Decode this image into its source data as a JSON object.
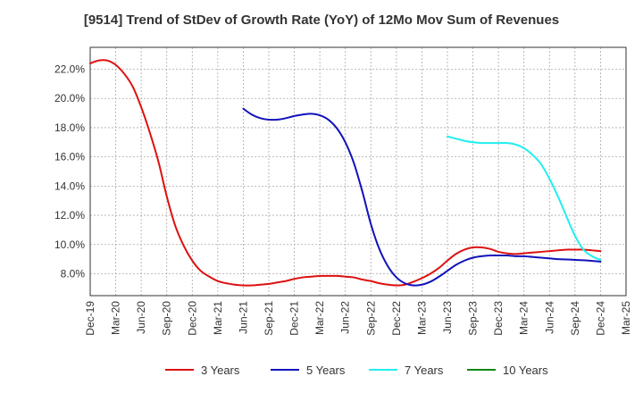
{
  "chart_data": {
    "type": "line",
    "title": "[9514]  Trend of StDev of Growth Rate (YoY) of 12Mo Mov Sum of Revenues",
    "xlabel": "",
    "ylabel": "",
    "ylim": [
      6.5,
      23.5
    ],
    "yticks": [
      8.0,
      10.0,
      12.0,
      14.0,
      16.0,
      18.0,
      20.0,
      22.0
    ],
    "ytick_labels": [
      "8.0%",
      "10.0%",
      "12.0%",
      "14.0%",
      "16.0%",
      "18.0%",
      "20.0%",
      "22.0%"
    ],
    "x_categories": [
      "Dec-19",
      "Mar-20",
      "Jun-20",
      "Sep-20",
      "Dec-20",
      "Mar-21",
      "Jun-21",
      "Sep-21",
      "Dec-21",
      "Mar-22",
      "Jun-22",
      "Sep-22",
      "Dec-22",
      "Mar-23",
      "Jun-23",
      "Sep-23",
      "Dec-23",
      "Mar-24",
      "Jun-24",
      "Sep-24",
      "Dec-24",
      "Mar-25"
    ],
    "grid": true,
    "legend_position": "bottom",
    "series": [
      {
        "name": "3 Years",
        "color": "#dd1111",
        "x": [
          0,
          0.33,
          0.67,
          1,
          1.33,
          1.67,
          2,
          2.33,
          2.67,
          3,
          3.33,
          3.67,
          4,
          4.33,
          4.67,
          5,
          5.33,
          5.67,
          6,
          6.33,
          6.67,
          7,
          7.33,
          7.67,
          8,
          8.33,
          8.67,
          9,
          9.33,
          9.67,
          10,
          10.33,
          10.67,
          11,
          11.33,
          11.67,
          12,
          12.33,
          12.67,
          13,
          13.33,
          13.67,
          14,
          14.33,
          14.67,
          15,
          15.33,
          15.67,
          16,
          16.33,
          16.67,
          17,
          17.33,
          17.67,
          18,
          18.33,
          18.67,
          19,
          19.33,
          19.67,
          20
        ],
        "values": [
          22.4,
          22.6,
          22.6,
          22.3,
          21.7,
          20.8,
          19.4,
          17.7,
          15.7,
          13.3,
          11.3,
          9.9,
          8.9,
          8.2,
          7.8,
          7.5,
          7.35,
          7.25,
          7.2,
          7.2,
          7.25,
          7.3,
          7.4,
          7.5,
          7.65,
          7.75,
          7.8,
          7.85,
          7.85,
          7.85,
          7.8,
          7.75,
          7.6,
          7.5,
          7.35,
          7.25,
          7.2,
          7.25,
          7.45,
          7.7,
          8.0,
          8.4,
          8.9,
          9.35,
          9.65,
          9.8,
          9.8,
          9.7,
          9.5,
          9.4,
          9.35,
          9.4,
          9.45,
          9.5,
          9.55,
          9.6,
          9.65,
          9.65,
          9.65,
          9.6,
          9.55
        ]
      },
      {
        "name": "5 Years",
        "color": "#1111bb",
        "x": [
          6,
          6.33,
          6.67,
          7,
          7.33,
          7.67,
          8,
          8.33,
          8.67,
          9,
          9.33,
          9.67,
          10,
          10.33,
          10.67,
          11,
          11.33,
          11.67,
          12,
          12.33,
          12.67,
          13,
          13.33,
          13.67,
          14,
          14.33,
          14.67,
          15,
          15.33,
          15.67,
          16,
          16.33,
          16.67,
          17,
          17.33,
          17.67,
          18,
          18.33,
          18.67,
          19,
          19.33,
          19.67,
          20
        ],
        "values": [
          19.3,
          18.9,
          18.65,
          18.55,
          18.55,
          18.65,
          18.8,
          18.9,
          18.95,
          18.85,
          18.55,
          17.95,
          17.0,
          15.6,
          13.6,
          11.4,
          9.7,
          8.5,
          7.75,
          7.35,
          7.2,
          7.25,
          7.45,
          7.8,
          8.2,
          8.6,
          8.9,
          9.1,
          9.2,
          9.25,
          9.25,
          9.25,
          9.2,
          9.2,
          9.15,
          9.1,
          9.05,
          9.0,
          8.98,
          8.95,
          8.92,
          8.88,
          8.83
        ]
      },
      {
        "name": "7 Years",
        "color": "#22eeee",
        "x": [
          14,
          14.33,
          14.67,
          15,
          15.33,
          15.67,
          16,
          16.33,
          16.67,
          17,
          17.33,
          17.67,
          18,
          18.33,
          18.67,
          19,
          19.33,
          19.67,
          20
        ],
        "values": [
          17.4,
          17.25,
          17.1,
          17.0,
          16.95,
          16.95,
          16.95,
          16.95,
          16.85,
          16.6,
          16.15,
          15.5,
          14.5,
          13.3,
          11.9,
          10.6,
          9.65,
          9.2,
          8.95
        ]
      },
      {
        "name": "10 Years",
        "color": "#118811",
        "x": [],
        "values": []
      }
    ]
  }
}
